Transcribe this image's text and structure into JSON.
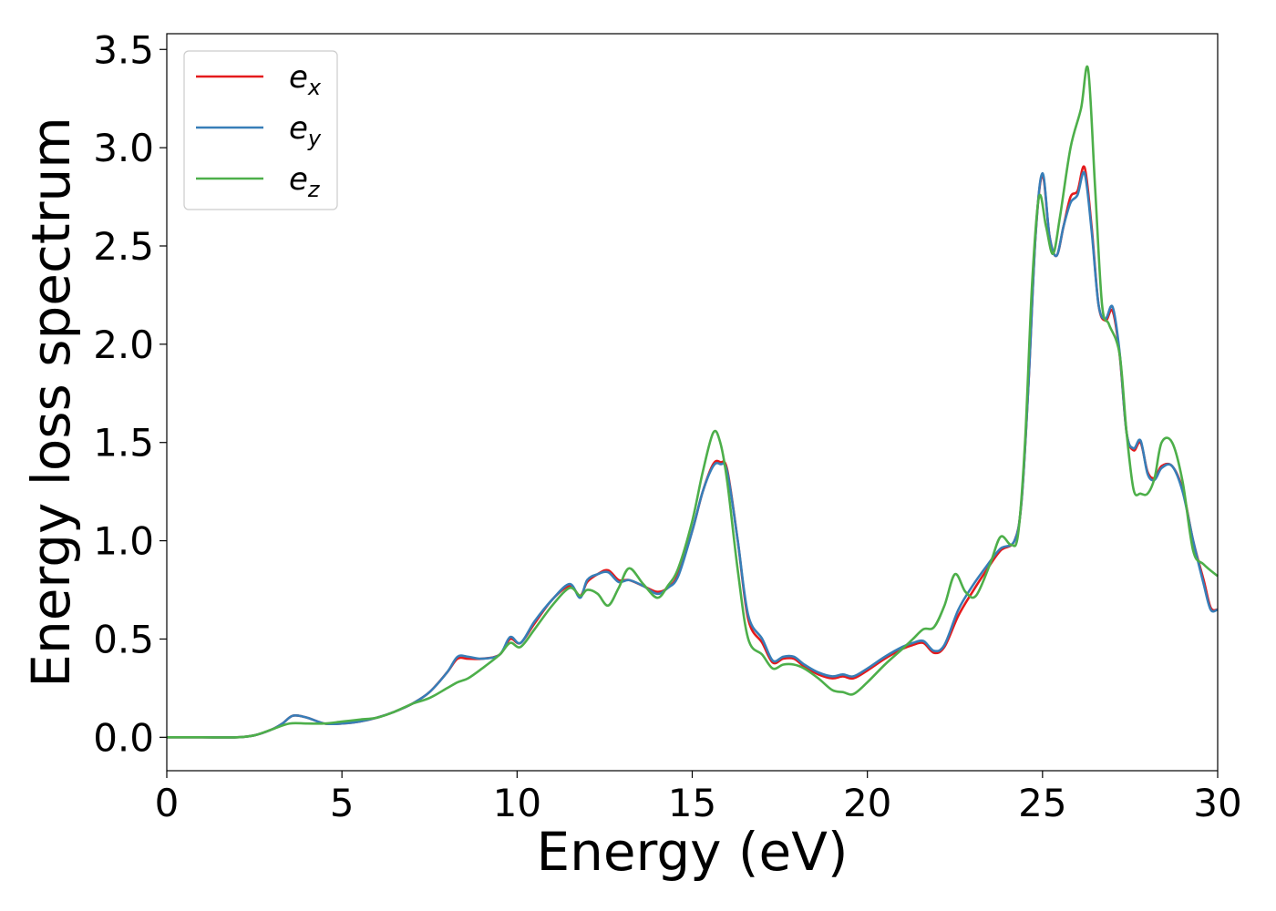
{
  "chart_data": {
    "type": "line",
    "title": "",
    "xlabel": "Energy (eV)",
    "ylabel": "Energy loss spectrum",
    "xlim": [
      0,
      30
    ],
    "ylim": [
      -0.17,
      3.58
    ],
    "xticks": [
      0,
      5,
      10,
      15,
      20,
      25,
      30
    ],
    "xtick_labels": [
      "0",
      "5",
      "10",
      "15",
      "20",
      "25",
      "30"
    ],
    "yticks": [
      0.0,
      0.5,
      1.0,
      1.5,
      2.0,
      2.5,
      3.0,
      3.5
    ],
    "ytick_labels": [
      "0.0",
      "0.5",
      "1.0",
      "1.5",
      "2.0",
      "2.5",
      "3.0",
      "3.5"
    ],
    "grid": false,
    "legend_position": "upper-left",
    "series": [
      {
        "name": "e_x",
        "legend_base": "e",
        "legend_sub": "x",
        "color": "#e41a1c",
        "x": [
          0,
          1,
          2,
          2.5,
          3,
          3.3,
          3.6,
          4,
          4.5,
          5,
          5.5,
          6,
          6.5,
          7,
          7.5,
          8,
          8.3,
          8.6,
          9,
          9.5,
          9.8,
          10.1,
          10.5,
          11,
          11.5,
          11.8,
          12,
          12.3,
          12.6,
          12.9,
          13.2,
          13.6,
          14,
          14.3,
          14.6,
          15,
          15.3,
          15.6,
          15.8,
          16,
          16.3,
          16.6,
          17,
          17.3,
          17.6,
          17.9,
          18.2,
          18.6,
          19,
          19.3,
          19.6,
          20,
          20.5,
          21,
          21.3,
          21.6,
          21.9,
          22.2,
          22.6,
          23,
          23.4,
          23.8,
          24.2,
          24.4,
          24.6,
          24.8,
          25,
          25.2,
          25.4,
          25.6,
          25.8,
          26,
          26.2,
          26.4,
          26.6,
          26.8,
          27,
          27.2,
          27.4,
          27.6,
          27.8,
          28,
          28.2,
          28.4,
          28.7,
          29,
          29.3,
          29.6,
          29.8,
          30
        ],
        "y": [
          0.0,
          0.0,
          0.0,
          0.01,
          0.04,
          0.07,
          0.11,
          0.1,
          0.07,
          0.07,
          0.08,
          0.1,
          0.13,
          0.17,
          0.23,
          0.33,
          0.4,
          0.4,
          0.4,
          0.42,
          0.5,
          0.48,
          0.58,
          0.7,
          0.77,
          0.72,
          0.79,
          0.83,
          0.85,
          0.8,
          0.8,
          0.77,
          0.74,
          0.76,
          0.83,
          1.05,
          1.25,
          1.39,
          1.4,
          1.36,
          1.0,
          0.6,
          0.48,
          0.38,
          0.4,
          0.4,
          0.36,
          0.32,
          0.3,
          0.31,
          0.3,
          0.34,
          0.4,
          0.45,
          0.47,
          0.48,
          0.43,
          0.46,
          0.62,
          0.74,
          0.85,
          0.95,
          1.0,
          1.2,
          1.8,
          2.55,
          2.86,
          2.55,
          2.45,
          2.6,
          2.75,
          2.78,
          2.9,
          2.6,
          2.2,
          2.12,
          2.17,
          1.95,
          1.55,
          1.46,
          1.5,
          1.35,
          1.32,
          1.38,
          1.38,
          1.26,
          1.0,
          0.8,
          0.66,
          0.65
        ]
      },
      {
        "name": "e_y",
        "legend_base": "e",
        "legend_sub": "y",
        "color": "#377eb8",
        "x": [
          0,
          1,
          2,
          2.5,
          3,
          3.3,
          3.6,
          4,
          4.5,
          5,
          5.5,
          6,
          6.5,
          7,
          7.5,
          8,
          8.3,
          8.6,
          9,
          9.5,
          9.8,
          10.1,
          10.5,
          11,
          11.5,
          11.8,
          12,
          12.3,
          12.6,
          12.9,
          13.2,
          13.6,
          14,
          14.3,
          14.6,
          15,
          15.3,
          15.6,
          15.8,
          16,
          16.3,
          16.6,
          17,
          17.3,
          17.6,
          17.9,
          18.2,
          18.6,
          19,
          19.3,
          19.6,
          20,
          20.5,
          21,
          21.3,
          21.6,
          21.9,
          22.2,
          22.6,
          23,
          23.4,
          23.8,
          24.2,
          24.4,
          24.6,
          24.8,
          25,
          25.2,
          25.4,
          25.6,
          25.8,
          26,
          26.2,
          26.4,
          26.6,
          26.8,
          27,
          27.2,
          27.4,
          27.6,
          27.8,
          28,
          28.2,
          28.4,
          28.7,
          29,
          29.3,
          29.6,
          29.8,
          30
        ],
        "y": [
          0.0,
          0.0,
          0.0,
          0.01,
          0.04,
          0.07,
          0.11,
          0.1,
          0.07,
          0.07,
          0.08,
          0.1,
          0.13,
          0.17,
          0.23,
          0.33,
          0.41,
          0.41,
          0.4,
          0.42,
          0.51,
          0.48,
          0.59,
          0.7,
          0.78,
          0.71,
          0.8,
          0.83,
          0.84,
          0.79,
          0.8,
          0.77,
          0.73,
          0.76,
          0.82,
          1.05,
          1.25,
          1.38,
          1.39,
          1.35,
          1.0,
          0.62,
          0.5,
          0.39,
          0.41,
          0.41,
          0.37,
          0.33,
          0.31,
          0.32,
          0.31,
          0.35,
          0.41,
          0.46,
          0.48,
          0.49,
          0.44,
          0.47,
          0.65,
          0.77,
          0.87,
          0.96,
          1.0,
          1.2,
          1.8,
          2.55,
          2.87,
          2.55,
          2.45,
          2.6,
          2.72,
          2.76,
          2.87,
          2.58,
          2.2,
          2.13,
          2.19,
          1.96,
          1.55,
          1.47,
          1.51,
          1.34,
          1.31,
          1.37,
          1.38,
          1.25,
          1.0,
          0.78,
          0.65,
          0.65
        ]
      },
      {
        "name": "e_z",
        "legend_base": "e",
        "legend_sub": "z",
        "color": "#4daf4a",
        "x": [
          0,
          1,
          2,
          2.5,
          3,
          3.5,
          4,
          4.5,
          5,
          5.5,
          6,
          6.5,
          7,
          7.5,
          8,
          8.3,
          8.6,
          9,
          9.5,
          9.8,
          10.1,
          10.5,
          11,
          11.5,
          11.8,
          12,
          12.3,
          12.6,
          12.9,
          13.2,
          13.6,
          14,
          14.3,
          14.6,
          15,
          15.3,
          15.6,
          15.8,
          16,
          16.3,
          16.6,
          17,
          17.3,
          17.6,
          17.9,
          18.2,
          18.6,
          19,
          19.3,
          19.6,
          20,
          20.5,
          21,
          21.3,
          21.6,
          21.9,
          22.2,
          22.5,
          22.8,
          23.1,
          23.5,
          23.8,
          24.1,
          24.3,
          24.5,
          24.7,
          24.9,
          25.1,
          25.3,
          25.5,
          25.8,
          26.1,
          26.3,
          26.5,
          26.7,
          26.9,
          27.2,
          27.4,
          27.6,
          27.8,
          28,
          28.2,
          28.4,
          28.7,
          29,
          29.3,
          29.6,
          30
        ],
        "y": [
          0.0,
          0.0,
          0.0,
          0.01,
          0.04,
          0.07,
          0.07,
          0.07,
          0.08,
          0.09,
          0.1,
          0.13,
          0.17,
          0.2,
          0.25,
          0.28,
          0.3,
          0.35,
          0.42,
          0.48,
          0.46,
          0.55,
          0.67,
          0.76,
          0.72,
          0.75,
          0.73,
          0.67,
          0.76,
          0.86,
          0.78,
          0.71,
          0.77,
          0.86,
          1.1,
          1.35,
          1.55,
          1.5,
          1.3,
          0.85,
          0.5,
          0.42,
          0.35,
          0.37,
          0.37,
          0.35,
          0.3,
          0.24,
          0.23,
          0.22,
          0.28,
          0.37,
          0.45,
          0.5,
          0.55,
          0.56,
          0.67,
          0.83,
          0.74,
          0.72,
          0.88,
          1.02,
          0.98,
          1.03,
          1.5,
          2.3,
          2.75,
          2.6,
          2.46,
          2.65,
          3.0,
          3.2,
          3.4,
          2.8,
          2.2,
          2.1,
          1.95,
          1.55,
          1.26,
          1.24,
          1.24,
          1.32,
          1.5,
          1.5,
          1.3,
          0.95,
          0.88,
          0.82
        ]
      }
    ]
  }
}
